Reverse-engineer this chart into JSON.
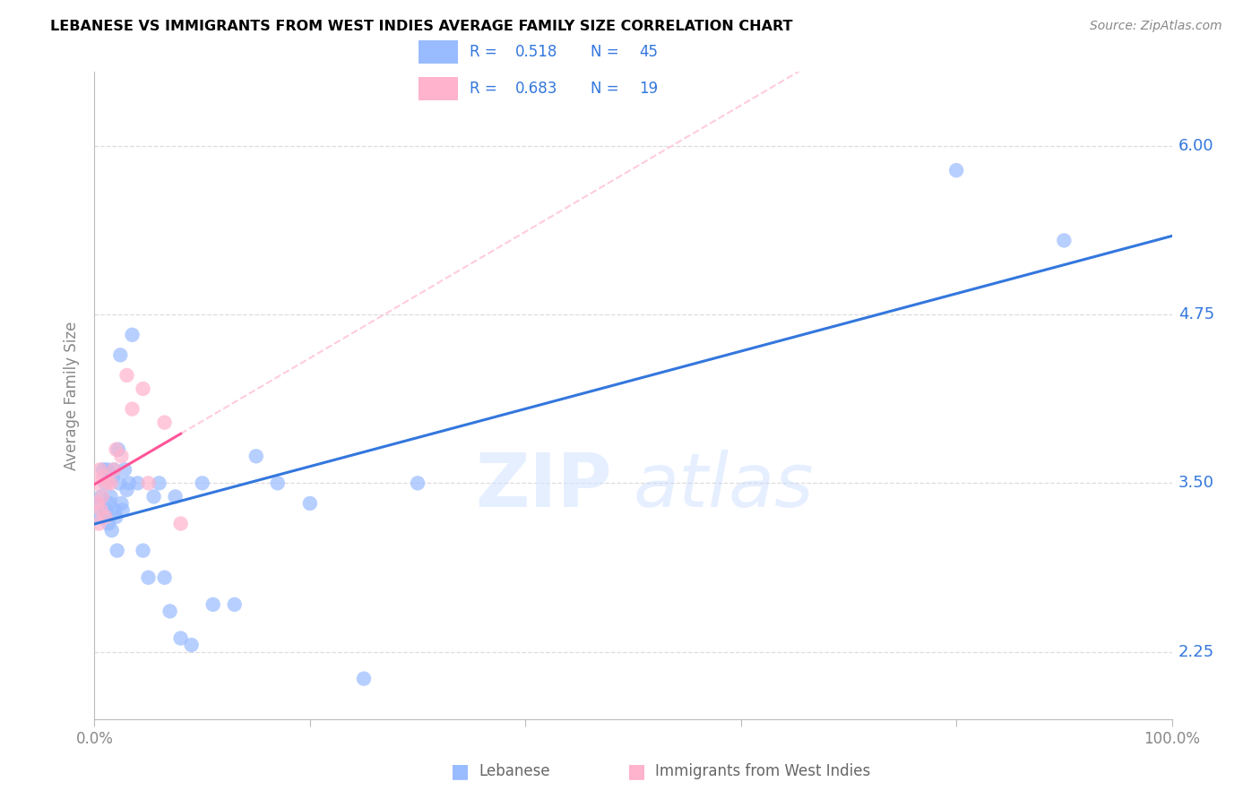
{
  "title": "LEBANESE VS IMMIGRANTS FROM WEST INDIES AVERAGE FAMILY SIZE CORRELATION CHART",
  "source": "Source: ZipAtlas.com",
  "ylabel": "Average Family Size",
  "ytick_labels": [
    "2.25",
    "3.50",
    "4.75",
    "6.00"
  ],
  "ytick_vals": [
    2.25,
    3.5,
    4.75,
    6.0
  ],
  "xlim": [
    0.0,
    100.0
  ],
  "ylim": [
    1.75,
    6.55
  ],
  "legend_blue_r": "0.518",
  "legend_blue_n": "45",
  "legend_pink_r": "0.683",
  "legend_pink_n": "19",
  "legend_blue_label": "Lebanese",
  "legend_pink_label": "Immigrants from West Indies",
  "blue_color": "#99BBFF",
  "pink_color": "#FFB3CC",
  "blue_line_color": "#3377DD",
  "pink_line_color": "#FF5599",
  "dashed_color": "#FFCCDD",
  "grid_color": "#DDDDDD",
  "blue_x": [
    0.3,
    0.5,
    0.6,
    0.8,
    1.0,
    1.1,
    1.2,
    1.3,
    1.4,
    1.5,
    1.6,
    1.7,
    1.8,
    1.9,
    2.0,
    2.1,
    2.2,
    2.3,
    2.4,
    2.5,
    2.6,
    2.8,
    3.0,
    3.2,
    3.5,
    4.0,
    4.5,
    5.0,
    5.5,
    6.0,
    6.5,
    7.0,
    7.5,
    8.0,
    9.0,
    10.0,
    11.0,
    13.0,
    15.0,
    17.0,
    20.0,
    25.0,
    30.0,
    80.0,
    90.0
  ],
  "blue_y": [
    3.35,
    3.25,
    3.4,
    3.6,
    3.5,
    3.3,
    3.6,
    3.2,
    3.35,
    3.4,
    3.15,
    3.55,
    3.6,
    3.3,
    3.25,
    3.0,
    3.75,
    3.5,
    4.45,
    3.35,
    3.3,
    3.6,
    3.45,
    3.5,
    4.6,
    3.5,
    3.0,
    2.8,
    3.4,
    3.5,
    2.8,
    2.55,
    3.4,
    2.35,
    2.3,
    3.5,
    2.6,
    2.6,
    3.7,
    3.5,
    3.35,
    2.05,
    3.5,
    5.82,
    5.3
  ],
  "pink_x": [
    0.2,
    0.3,
    0.4,
    0.5,
    0.6,
    0.7,
    0.8,
    1.0,
    1.2,
    1.5,
    1.8,
    2.0,
    2.5,
    3.0,
    3.5,
    4.5,
    5.0,
    6.5,
    8.0
  ],
  "pink_y": [
    3.5,
    3.35,
    3.2,
    3.6,
    3.3,
    3.4,
    3.55,
    3.25,
    3.5,
    3.5,
    3.6,
    3.75,
    3.7,
    4.3,
    4.05,
    4.2,
    3.5,
    3.95,
    3.2
  ]
}
